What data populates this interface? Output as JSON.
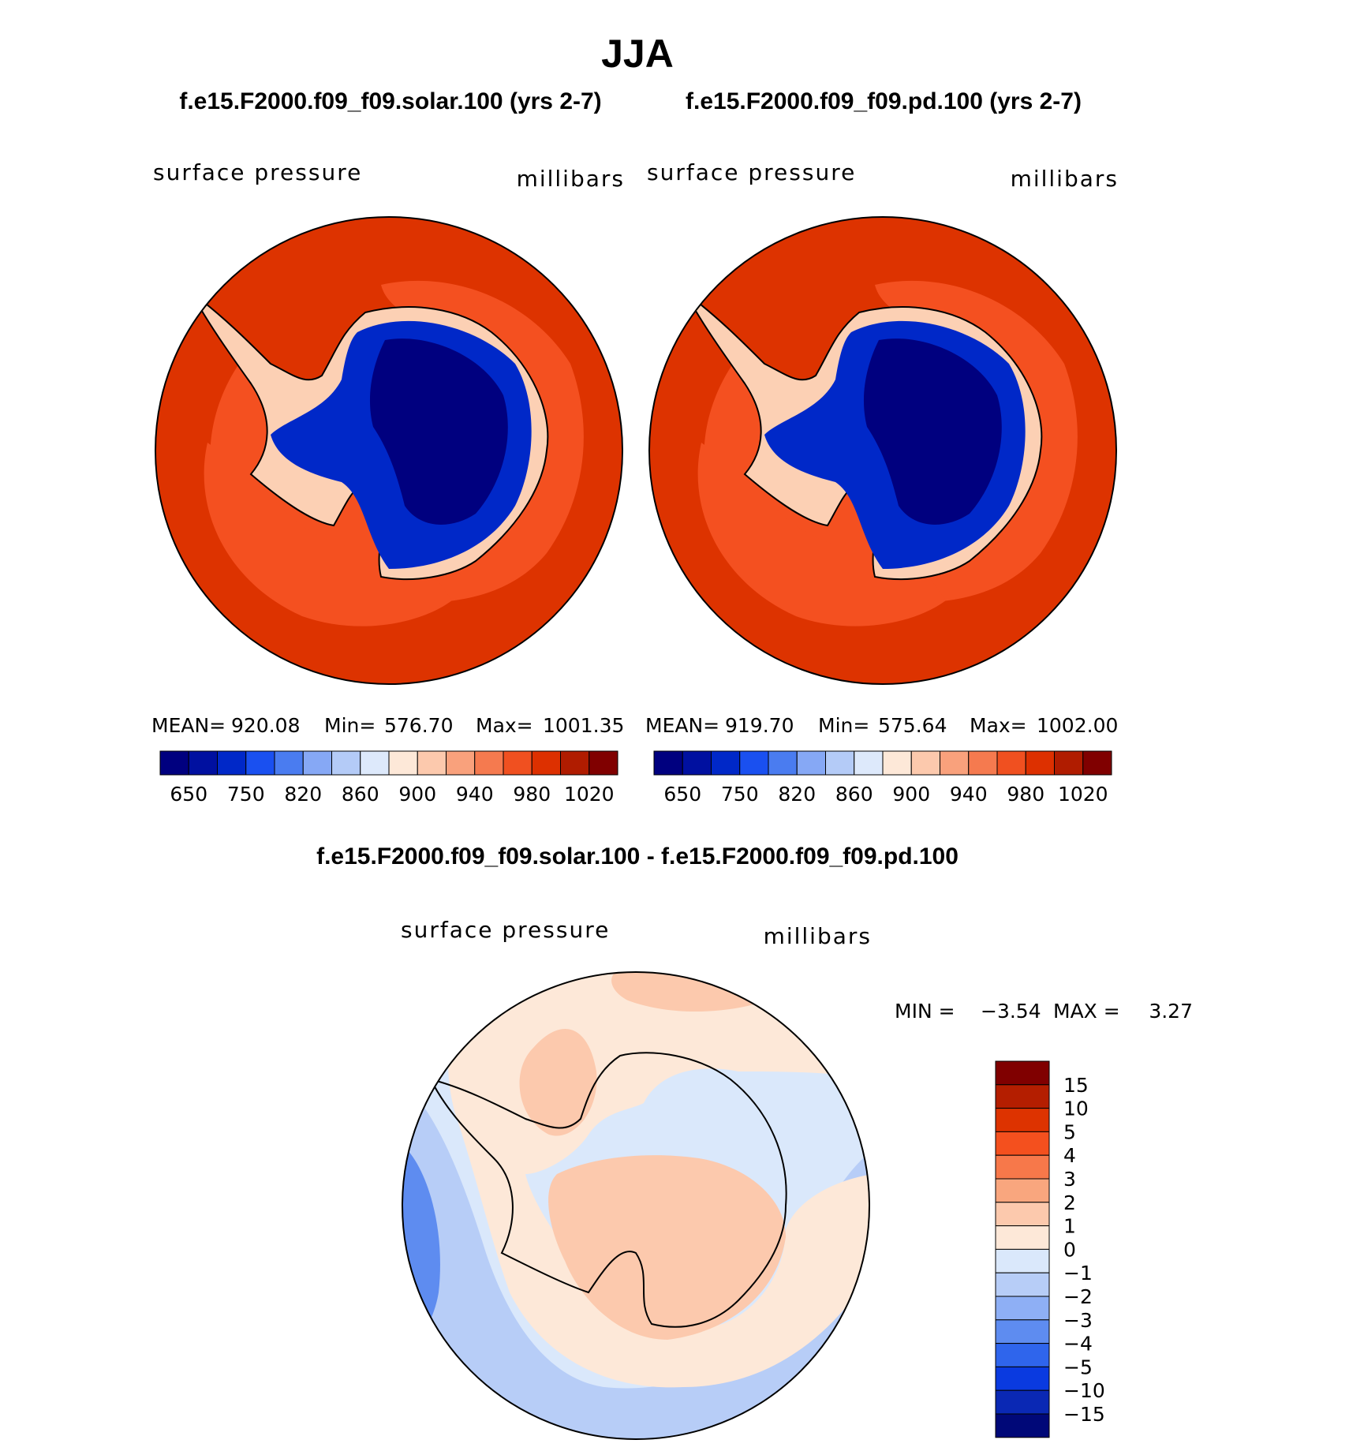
{
  "page_title": "JJA",
  "difference_title": "f.e15.F2000.f09_f09.solar.100 - f.e15.F2000.f09_f09.pd.100",
  "chart_data": [
    {
      "type": "heatmap",
      "projection": "south-polar-stereographic",
      "title": "f.e15.F2000.f09_f09.solar.100 (yrs 2-7)",
      "left_label": "surface pressure",
      "right_label": "millibars",
      "stats": {
        "mean_label": "MEAN=",
        "mean": "920.08",
        "min_label": "Min=",
        "min": "576.70",
        "max_label": "Max=",
        "max": "1001.35"
      },
      "colorbar": {
        "orientation": "horizontal",
        "tick_labels": [
          "650",
          "750",
          "820",
          "860",
          "900",
          "940",
          "980",
          "1020"
        ],
        "colors": [
          "#00007f",
          "#0010a0",
          "#0028c8",
          "#1a50f0",
          "#4a7cf0",
          "#86a8f5",
          "#b4cbf7",
          "#dde9fb",
          "#fde8d8",
          "#fcc9ad",
          "#f9a17c",
          "#f57a4f",
          "#f05020",
          "#dd3000",
          "#b01c00",
          "#800000"
        ]
      },
      "field": {
        "ocean": "#dd3300",
        "ocean_band": "#f45020",
        "coast": "#fcd0b4",
        "interior": "#00007f"
      }
    },
    {
      "type": "heatmap",
      "projection": "south-polar-stereographic",
      "title": "f.e15.F2000.f09_f09.pd.100 (yrs 2-7)",
      "left_label": "surface pressure",
      "right_label": "millibars",
      "stats": {
        "mean_label": "MEAN=",
        "mean": "919.70",
        "min_label": "Min=",
        "min": "575.64",
        "max_label": "Max=",
        "max": "1002.00"
      },
      "colorbar": {
        "orientation": "horizontal",
        "tick_labels": [
          "650",
          "750",
          "820",
          "860",
          "900",
          "940",
          "980",
          "1020"
        ],
        "colors": [
          "#00007f",
          "#0010a0",
          "#0028c8",
          "#1a50f0",
          "#4a7cf0",
          "#86a8f5",
          "#b4cbf7",
          "#dde9fb",
          "#fde8d8",
          "#fcc9ad",
          "#f9a17c",
          "#f57a4f",
          "#f05020",
          "#dd3000",
          "#b01c00",
          "#800000"
        ]
      },
      "field": {
        "ocean": "#dd3300",
        "ocean_band": "#f45020",
        "coast": "#fcd0b4",
        "interior": "#00007f"
      }
    },
    {
      "type": "heatmap",
      "projection": "south-polar-stereographic",
      "title": "f.e15.F2000.f09_f09.solar.100 - f.e15.F2000.f09_f09.pd.100",
      "left_label": "surface pressure",
      "right_label": "millibars",
      "stats": {
        "min_label": "MIN =",
        "min": "−3.54",
        "max_label": "MAX =",
        "max": "3.27"
      },
      "colorbar": {
        "orientation": "vertical",
        "tick_labels": [
          "15",
          "10",
          "5",
          "4",
          "3",
          "2",
          "1",
          "0",
          "−1",
          "−2",
          "−3",
          "−4",
          "−5",
          "−10",
          "−15"
        ],
        "colors": [
          "#800000",
          "#b41e00",
          "#dd3300",
          "#f4501e",
          "#f7784a",
          "#f9a67e",
          "#fcc9ad",
          "#fde8d8",
          "#dae8fb",
          "#b7cdf7",
          "#8eaff5",
          "#5e8cf0",
          "#2f65ec",
          "#0a3ae0",
          "#0a28b4",
          "#000878"
        ]
      },
      "field": {
        "positive": "#fcc9ad",
        "neutral_positive": "#fde8d8",
        "neutral_negative": "#dae8fb",
        "negative": "#b7cdf7",
        "strong_negative": "#5e8cf0"
      }
    }
  ]
}
